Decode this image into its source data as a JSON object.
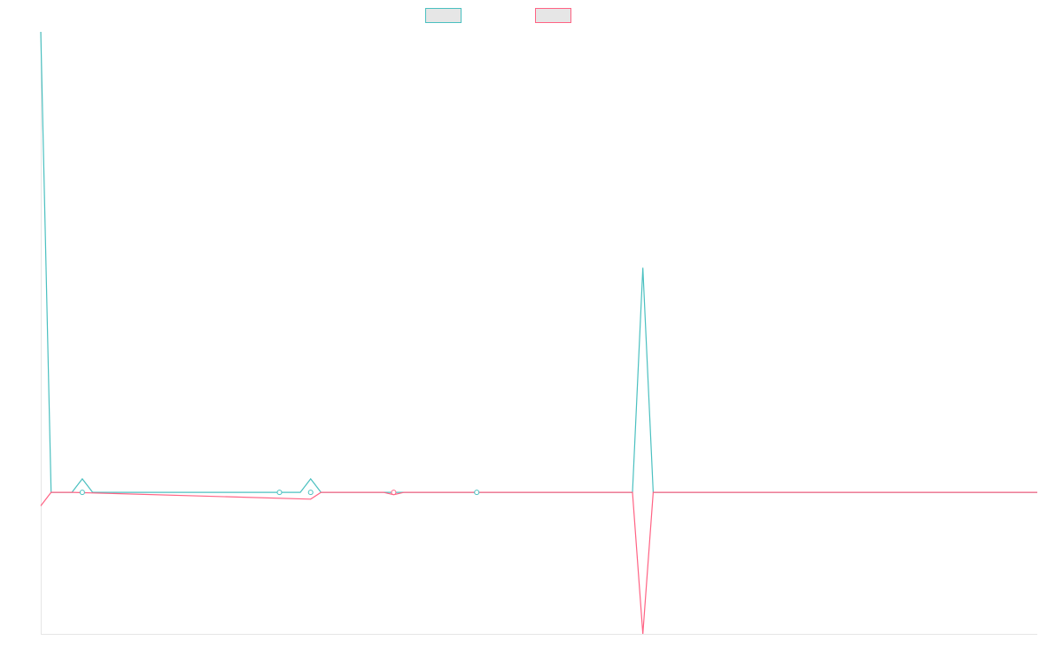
{
  "chart_data": {
    "type": "line",
    "title": "",
    "xlabel": "",
    "ylabel": "",
    "legend_placement": "top-center",
    "grid": false,
    "x_count": 97,
    "ylim": [
      -0.63,
      2.05
    ],
    "series": [
      {
        "name": "",
        "color": "#4bc0c0",
        "fill": "#e6e6e6",
        "points": [
          {
            "i": 0,
            "y": 2.05
          },
          {
            "i": 1,
            "y": 0.0
          },
          {
            "i": 2,
            "y": 0.0
          },
          {
            "i": 3,
            "y": 0.0
          },
          {
            "i": 4,
            "y": 0.06
          },
          {
            "i": 5,
            "y": 0.0
          },
          {
            "i": 23,
            "y": 0.0
          },
          {
            "i": 24,
            "y": 0.0
          },
          {
            "i": 25,
            "y": 0.0
          },
          {
            "i": 26,
            "y": 0.06
          },
          {
            "i": 27,
            "y": 0.0
          },
          {
            "i": 33,
            "y": 0.0
          },
          {
            "i": 34,
            "y": 0.0
          },
          {
            "i": 35,
            "y": 0.0
          },
          {
            "i": 41,
            "y": 0.0
          },
          {
            "i": 42,
            "y": 0.0
          },
          {
            "i": 43,
            "y": 0.0
          },
          {
            "i": 57,
            "y": 0.0
          },
          {
            "i": 58,
            "y": 1.0
          },
          {
            "i": 59,
            "y": 0.0
          },
          {
            "i": 96,
            "y": 0.0
          }
        ]
      },
      {
        "name": "",
        "color": "#ff6384",
        "fill": "#e6e6e6",
        "points": [
          {
            "i": 0,
            "y": -0.06
          },
          {
            "i": 1,
            "y": 0.0
          },
          {
            "i": 2,
            "y": 0.0
          },
          {
            "i": 3,
            "y": 0.0
          },
          {
            "i": 26,
            "y": -0.03
          },
          {
            "i": 27,
            "y": 0.0
          },
          {
            "i": 33,
            "y": 0.0
          },
          {
            "i": 34,
            "y": -0.01
          },
          {
            "i": 35,
            "y": 0.0
          },
          {
            "i": 57,
            "y": 0.0
          },
          {
            "i": 58,
            "y": -0.63
          },
          {
            "i": 59,
            "y": 0.0
          },
          {
            "i": 96,
            "y": 0.0
          }
        ]
      }
    ],
    "markers": [
      {
        "series": 0,
        "i": 4
      },
      {
        "series": 0,
        "i": 23
      },
      {
        "series": 0,
        "i": 26
      },
      {
        "series": 1,
        "i": 34
      },
      {
        "series": 0,
        "i": 42
      }
    ]
  }
}
